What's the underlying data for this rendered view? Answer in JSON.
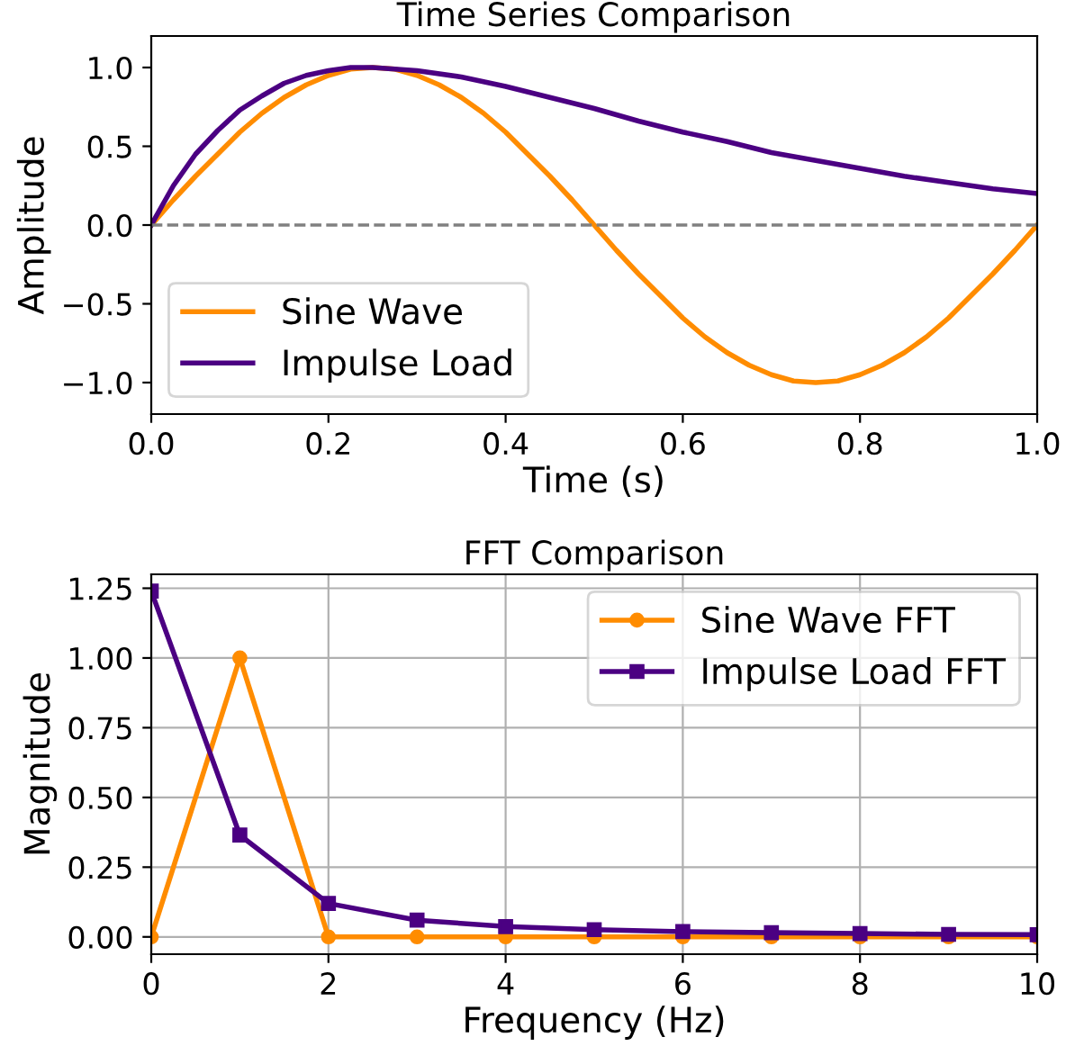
{
  "chart_data": [
    {
      "type": "line",
      "title": "Time Series Comparison",
      "xlabel": "Time (s)",
      "ylabel": "Amplitude",
      "xlim": [
        0,
        1
      ],
      "ylim": [
        -1.2,
        1.2
      ],
      "xticks": [
        {
          "value": 0,
          "label": "0.0"
        },
        0.2,
        0.4,
        0.6,
        0.8,
        {
          "value": 1,
          "label": "1.0"
        }
      ],
      "yticks": [
        {
          "value": -1,
          "label": "−1.0"
        },
        {
          "value": -0.5,
          "label": "−0.5"
        },
        {
          "value": 0,
          "label": "0.0"
        },
        0.5,
        {
          "value": 1,
          "label": "1.0"
        }
      ],
      "series": [
        {
          "name": "Sine Wave",
          "color": "#ff8c00",
          "x": [
            0,
            0.025,
            0.05,
            0.075,
            0.1,
            0.125,
            0.15,
            0.175,
            0.2,
            0.225,
            0.25,
            0.275,
            0.3,
            0.325,
            0.35,
            0.375,
            0.4,
            0.425,
            0.45,
            0.475,
            0.5,
            0.525,
            0.55,
            0.575,
            0.6,
            0.625,
            0.65,
            0.675,
            0.7,
            0.725,
            0.75,
            0.775,
            0.8,
            0.825,
            0.85,
            0.875,
            0.9,
            0.925,
            0.95,
            0.975,
            1
          ],
          "values": [
            0,
            0.16,
            0.31,
            0.45,
            0.59,
            0.71,
            0.81,
            0.89,
            0.95,
            0.99,
            1,
            0.99,
            0.95,
            0.89,
            0.81,
            0.71,
            0.59,
            0.45,
            0.31,
            0.16,
            0,
            -0.16,
            -0.31,
            -0.45,
            -0.59,
            -0.71,
            -0.81,
            -0.89,
            -0.95,
            -0.99,
            -1,
            -0.99,
            -0.95,
            -0.89,
            -0.81,
            -0.71,
            -0.59,
            -0.45,
            -0.31,
            -0.16,
            0
          ]
        },
        {
          "name": "Impulse Load",
          "color": "#4b0082",
          "x": [
            0,
            0.025,
            0.05,
            0.075,
            0.1,
            0.125,
            0.15,
            0.175,
            0.2,
            0.225,
            0.25,
            0.3,
            0.35,
            0.4,
            0.45,
            0.5,
            0.55,
            0.6,
            0.65,
            0.7,
            0.75,
            0.8,
            0.85,
            0.9,
            0.95,
            1
          ],
          "values": [
            0,
            0.25,
            0.45,
            0.6,
            0.73,
            0.82,
            0.9,
            0.95,
            0.98,
            1,
            1,
            0.98,
            0.94,
            0.88,
            0.81,
            0.74,
            0.66,
            0.59,
            0.53,
            0.46,
            0.41,
            0.36,
            0.31,
            0.27,
            0.23,
            0.2
          ]
        }
      ],
      "ref_lines": [
        {
          "axis": "y",
          "value": 0,
          "color": "#808080",
          "line_style": "dashed"
        }
      ],
      "legend": "bottom left",
      "grid": false
    },
    {
      "type": "line",
      "title": "FFT Comparison",
      "xlabel": "Frequency (Hz)",
      "ylabel": "Magnitude",
      "x": [
        0,
        1,
        2,
        3,
        4,
        5,
        6,
        7,
        8,
        9,
        10
      ],
      "xlim": [
        0,
        10
      ],
      "ylim": [
        -0.062,
        1.3
      ],
      "xticks": [
        0,
        2,
        4,
        6,
        8,
        10
      ],
      "yticks": [
        {
          "value": 0,
          "label": "0.00"
        },
        0.25,
        {
          "value": 0.5,
          "label": "0.50"
        },
        0.75,
        {
          "value": 1,
          "label": "1.00"
        },
        1.25
      ],
      "series": [
        {
          "name": "Sine Wave FFT",
          "color": "#ff8c00",
          "marker": "circle",
          "values": [
            0,
            1,
            0,
            0,
            0,
            0,
            0,
            0,
            0,
            0,
            0
          ]
        },
        {
          "name": "Impulse Load FFT",
          "color": "#4b0082",
          "marker": "square",
          "values": [
            1.24,
            0.365,
            0.12,
            0.06,
            0.037,
            0.026,
            0.019,
            0.015,
            0.012,
            0.009,
            0.008
          ]
        }
      ],
      "legend": "top right",
      "grid": true
    }
  ]
}
